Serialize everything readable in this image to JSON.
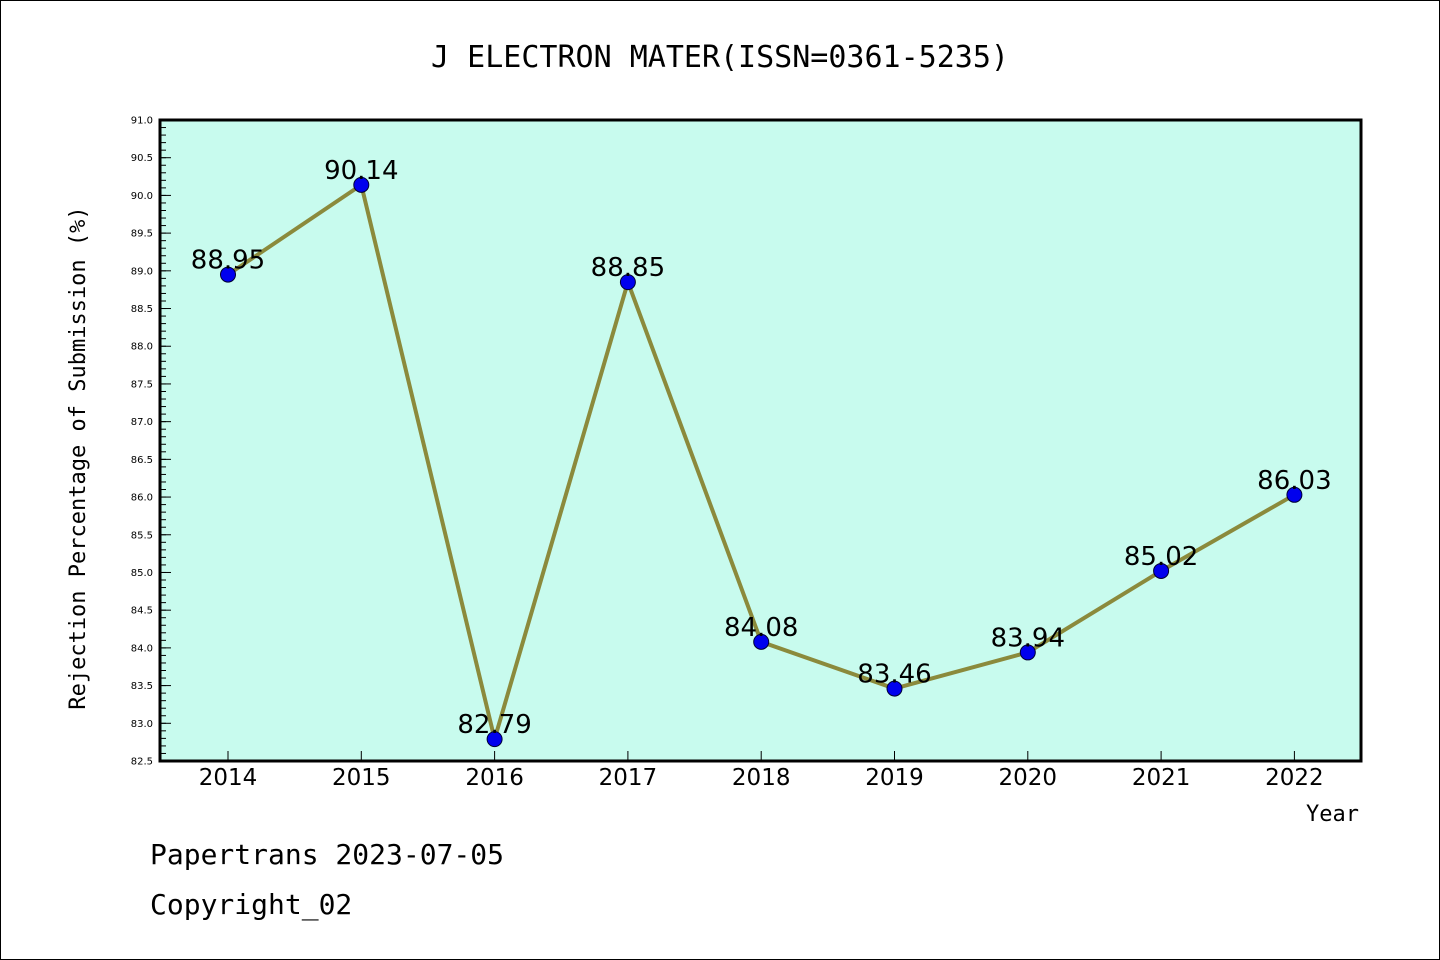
{
  "chart_data": {
    "type": "line",
    "title": "J ELECTRON MATER(ISSN=0361-5235)",
    "xlabel": "Year",
    "ylabel": "Rejection Percentage of Submission (%)",
    "categories": [
      "2014",
      "2015",
      "2016",
      "2017",
      "2018",
      "2019",
      "2020",
      "2021",
      "2022"
    ],
    "series": [
      {
        "values": [
          88.95,
          90.14,
          82.79,
          88.85,
          84.08,
          83.46,
          83.94,
          85.02,
          86.03
        ]
      }
    ],
    "data_labels": [
      "88.95",
      "90.14",
      "82.79",
      "88.85",
      "84.08",
      "83.46",
      "83.94",
      "85.02",
      "86.03"
    ],
    "ylim": [
      82.5,
      91.0
    ],
    "yticks": [
      "82.5",
      "83.0",
      "83.5",
      "84.0",
      "84.5",
      "85.0",
      "85.5",
      "86.0",
      "86.5",
      "87.0",
      "87.5",
      "88.0",
      "88.5",
      "89.0",
      "89.5",
      "90.0",
      "90.5",
      "91.0"
    ],
    "grid": false,
    "colors": {
      "plot_background": "#c8fbee",
      "line": "#8b8a3c",
      "marker": "#0000ee"
    }
  },
  "footer": {
    "line1": "Papertrans 2023-07-05",
    "line2": "Copyright_02"
  }
}
